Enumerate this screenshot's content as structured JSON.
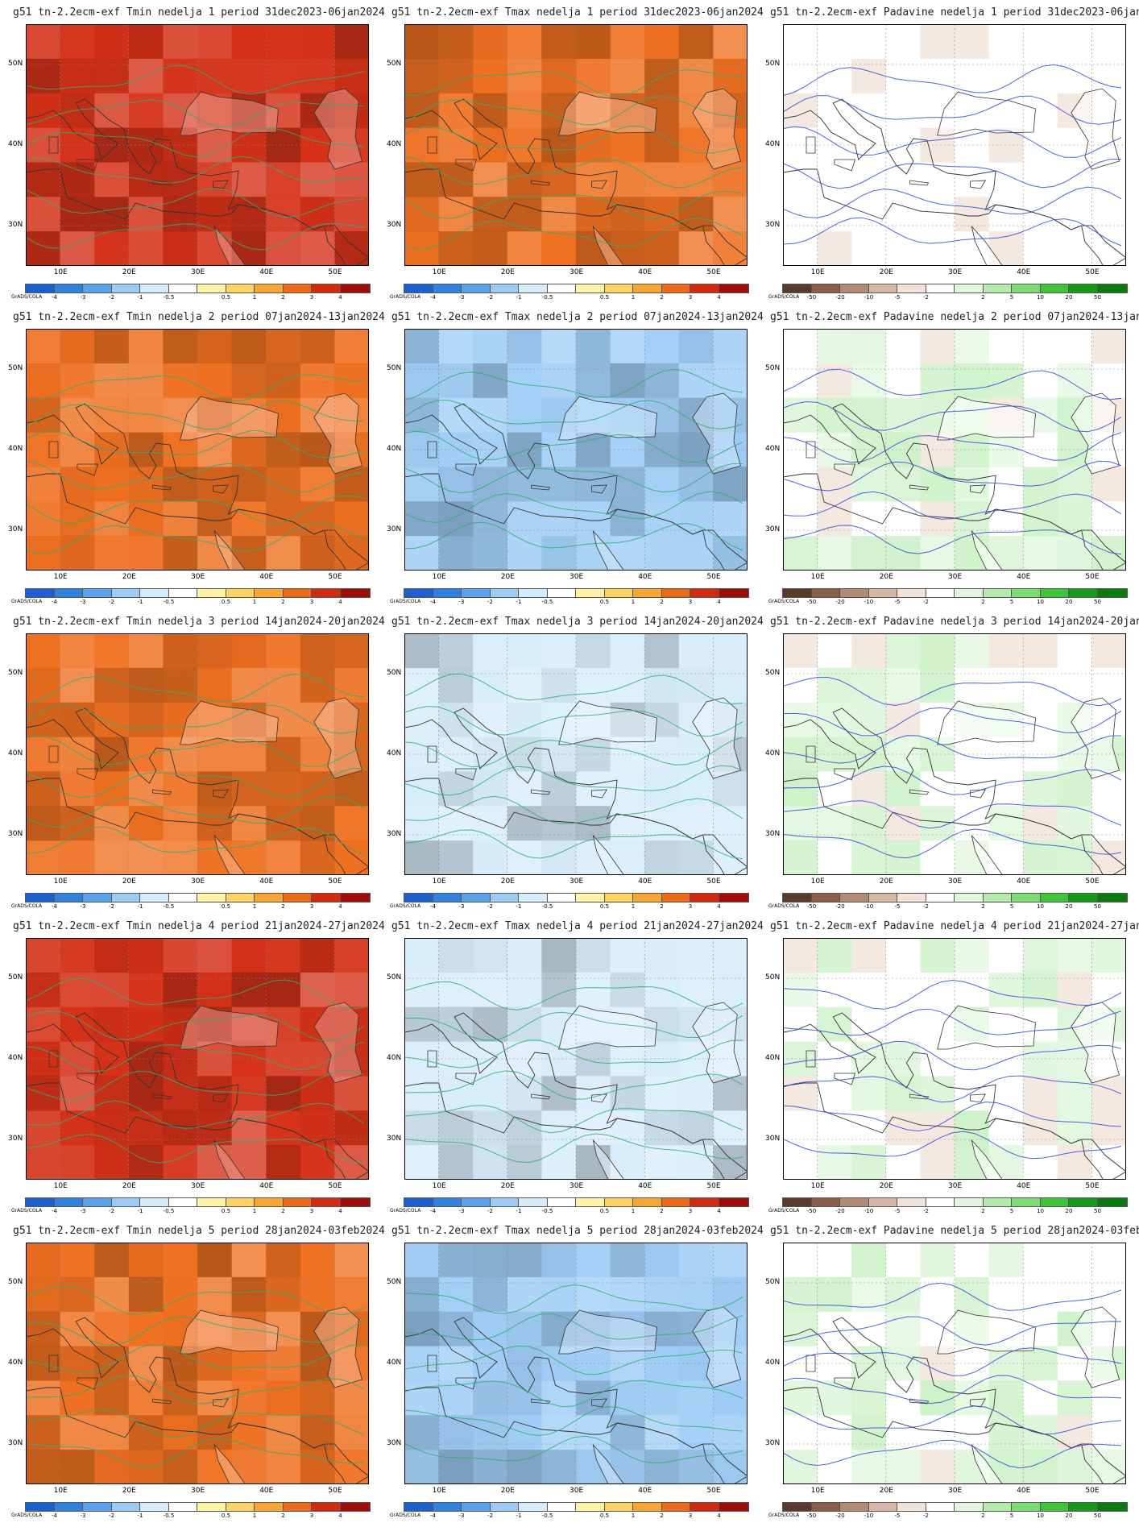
{
  "map_data": {
    "model": "g51",
    "run": "tn-2.2ecm-exf",
    "credit": "GrADS/COLA",
    "lat_labels": [
      "50N",
      "40N",
      "30N"
    ],
    "lon_labels": [
      "10E",
      "20E",
      "30E",
      "40E",
      "50E"
    ],
    "extent": {
      "lon": [
        5,
        55
      ],
      "lat": [
        25,
        55
      ]
    },
    "columns": [
      {
        "variable": "Tmin",
        "scale": "temp"
      },
      {
        "variable": "Tmax",
        "scale": "temp"
      },
      {
        "variable": "Padavine",
        "scale": "precip"
      }
    ],
    "weeks": [
      {
        "label": "nedelja 1",
        "period": "period 31dec2023-06jan2024",
        "tmin_level": 3.6,
        "tmax_level": 2.4,
        "precip_level": 0.2
      },
      {
        "label": "nedelja 2",
        "period": "period 07jan2024-13jan2024",
        "tmin_level": 2.8,
        "tmax_level": -1.5,
        "precip_level": 4.0
      },
      {
        "label": "nedelja 3",
        "period": "period 14jan2024-20jan2024",
        "tmin_level": 2.6,
        "tmax_level": -1.0,
        "precip_level": 3.0
      },
      {
        "label": "nedelja 4",
        "period": "period 21jan2024-27jan2024",
        "tmin_level": 3.5,
        "tmax_level": -0.6,
        "precip_level": 2.0
      },
      {
        "label": "nedelja 5",
        "period": "period 28jan2024-03feb2024",
        "tmin_level": 2.6,
        "tmax_level": -1.2,
        "precip_level": 3.0
      }
    ],
    "scales": {
      "temp": {
        "labels": [
          "-4",
          "-3",
          "-2",
          "-1",
          "-0.5",
          "0.5",
          "1",
          "2",
          "3",
          "4"
        ],
        "colors": [
          "#1c5fd0",
          "#2f82e0",
          "#5aa3ec",
          "#9ccbf5",
          "#d6ecfb",
          "#ffffff",
          "#fff3a8",
          "#ffd363",
          "#f7a633",
          "#ee6a18",
          "#d32a0f",
          "#a00d08"
        ]
      },
      "precip": {
        "labels": [
          "-50",
          "-20",
          "-10",
          "-5",
          "-2",
          "2",
          "5",
          "10",
          "20",
          "50"
        ],
        "colors": [
          "#5a3a2a",
          "#8a5e48",
          "#b38a74",
          "#d6b7a6",
          "#f1e3da",
          "#ffffff",
          "#e3f7de",
          "#b4ebac",
          "#7cdc74",
          "#3ec63a",
          "#169a19",
          "#0b7a10"
        ]
      }
    }
  }
}
